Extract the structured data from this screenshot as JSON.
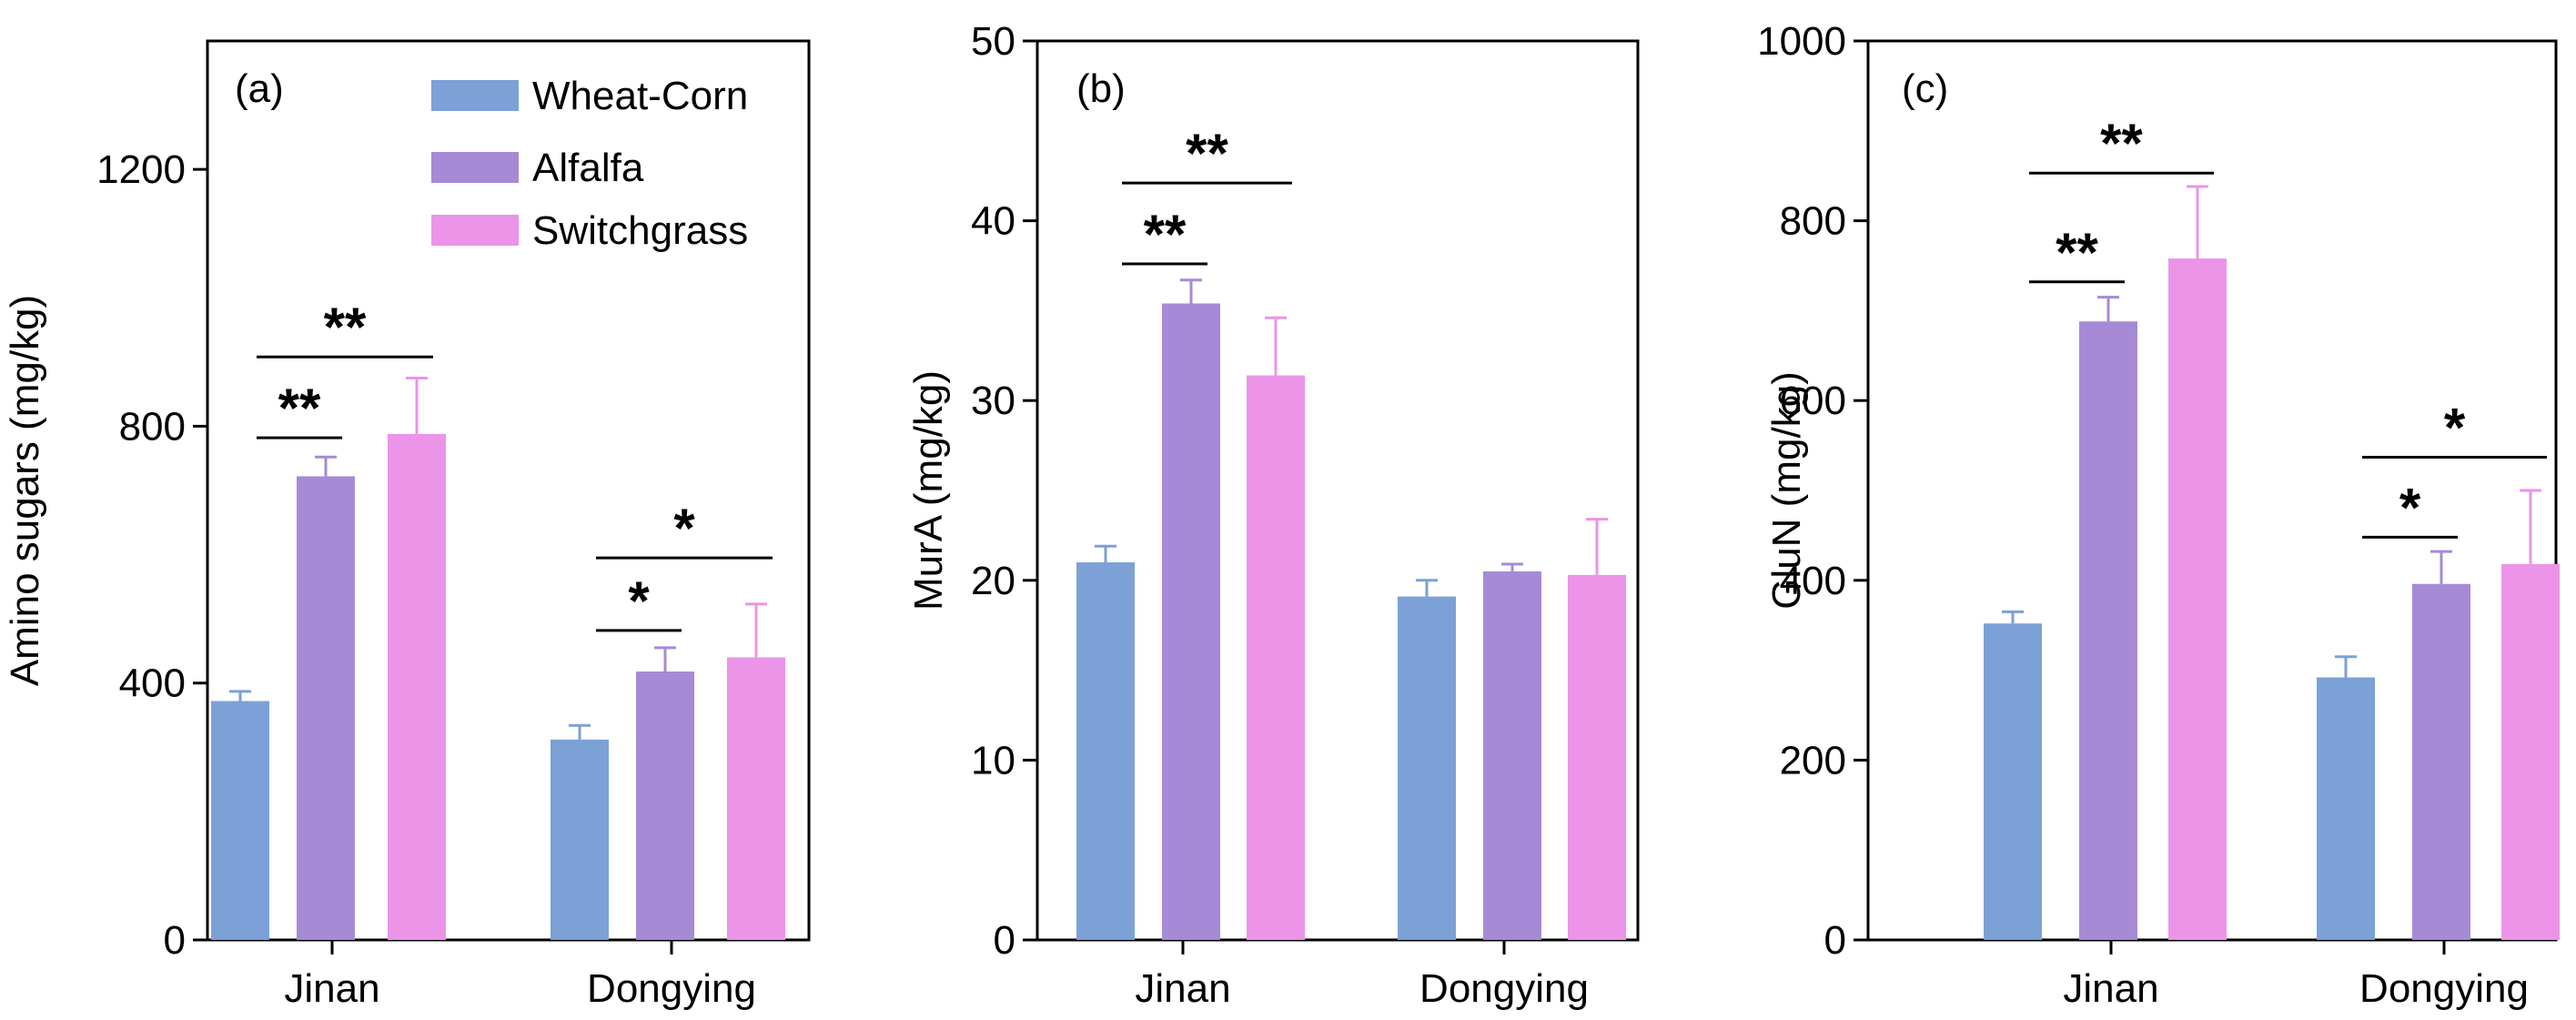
{
  "colors": {
    "wheat_corn": "#7ba1d6",
    "alfalfa": "#a68ad6",
    "switchgrass": "#eb94e8"
  },
  "legend": [
    {
      "name": "Wheat-Corn",
      "color": "#7ba1d6"
    },
    {
      "name": "Alfalfa",
      "color": "#a68ad6"
    },
    {
      "name": "Switchgrass",
      "color": "#eb94e8"
    }
  ],
  "chart_data": [
    {
      "type": "bar",
      "panel_label": "(a)",
      "title": "",
      "xlabel": "",
      "ylabel": "Amino sugars (mg/kg)",
      "ylim": [
        0,
        1400
      ],
      "yticks": [
        0,
        400,
        800,
        1200
      ],
      "categories": [
        "Jinan",
        "Dongying"
      ],
      "series": [
        {
          "name": "Wheat-Corn",
          "values": [
            372,
            312
          ],
          "errors": [
            15,
            22
          ]
        },
        {
          "name": "Alfalfa",
          "values": [
            722,
            418
          ],
          "errors": [
            30,
            37
          ]
        },
        {
          "name": "Switchgrass",
          "values": [
            788,
            440
          ],
          "errors": [
            87,
            83
          ]
        }
      ],
      "significance": [
        {
          "category": 0,
          "from": 0,
          "to": 1,
          "y": 782,
          "label": "**"
        },
        {
          "category": 0,
          "from": 0,
          "to": 2,
          "y": 908,
          "label": "**"
        },
        {
          "category": 1,
          "from": 0,
          "to": 1,
          "y": 482,
          "label": "*"
        },
        {
          "category": 1,
          "from": 0,
          "to": 2,
          "y": 595,
          "label": "*"
        }
      ],
      "legend_position": "top-right"
    },
    {
      "type": "bar",
      "panel_label": "(b)",
      "title": "",
      "xlabel": "",
      "ylabel": "MurA (mg/kg)",
      "ylim": [
        0,
        50
      ],
      "yticks": [
        0,
        10,
        20,
        30,
        40,
        50
      ],
      "categories": [
        "Jinan",
        "Dongying"
      ],
      "series": [
        {
          "name": "Wheat-Corn",
          "values": [
            21.0,
            19.1
          ],
          "errors": [
            0.9,
            0.9
          ]
        },
        {
          "name": "Alfalfa",
          "values": [
            35.4,
            20.5
          ],
          "errors": [
            1.3,
            0.4
          ]
        },
        {
          "name": "Switchgrass",
          "values": [
            31.4,
            20.3
          ],
          "errors": [
            3.2,
            3.1
          ]
        }
      ],
      "significance": [
        {
          "category": 0,
          "from": 0,
          "to": 1,
          "y": 37.6,
          "label": "**"
        },
        {
          "category": 0,
          "from": 0,
          "to": 2,
          "y": 42.1,
          "label": "**"
        }
      ]
    },
    {
      "type": "bar",
      "panel_label": "(c)",
      "title": "",
      "xlabel": "",
      "ylabel": "GluN (mg/kg)",
      "ylim": [
        0,
        1000
      ],
      "yticks": [
        0,
        200,
        400,
        600,
        800,
        1000
      ],
      "categories": [
        "Jinan",
        "Dongying"
      ],
      "series": [
        {
          "name": "Wheat-Corn",
          "values": [
            352,
            292
          ],
          "errors": [
            13,
            23
          ]
        },
        {
          "name": "Alfalfa",
          "values": [
            688,
            396
          ],
          "errors": [
            27,
            36
          ]
        },
        {
          "name": "Switchgrass",
          "values": [
            758,
            418
          ],
          "errors": [
            80,
            82
          ]
        }
      ],
      "significance": [
        {
          "category": 0,
          "from": 0,
          "to": 1,
          "y": 732,
          "label": "**"
        },
        {
          "category": 0,
          "from": 0,
          "to": 2,
          "y": 853,
          "label": "**"
        },
        {
          "category": 1,
          "from": 0,
          "to": 1,
          "y": 448,
          "label": "*"
        },
        {
          "category": 1,
          "from": 0,
          "to": 2,
          "y": 537,
          "label": "*"
        }
      ]
    }
  ]
}
